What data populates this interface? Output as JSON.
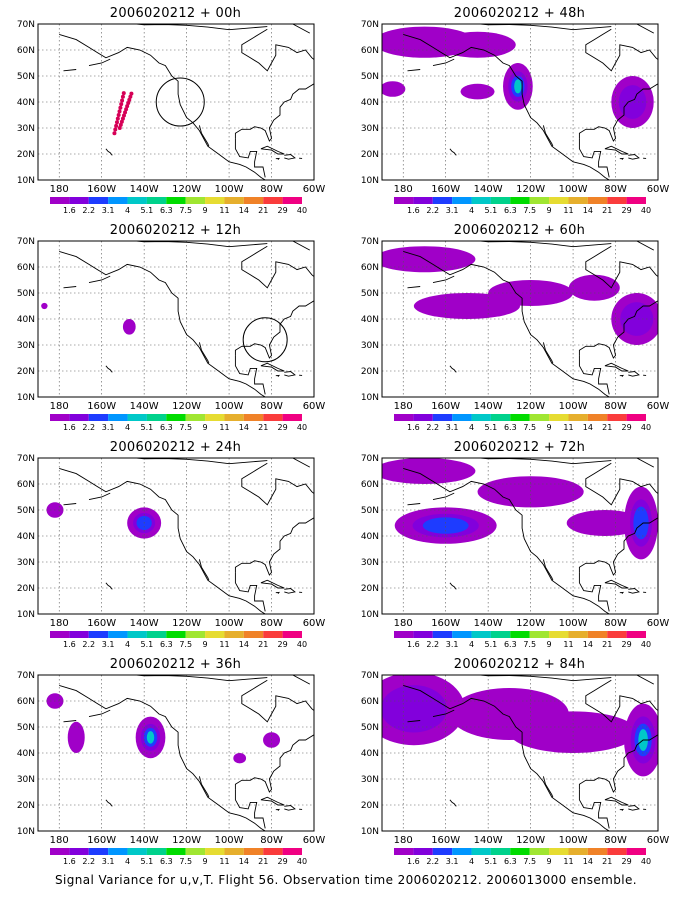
{
  "caption": "Signal Variance for u,v,T. Flight 56. Observation time 2006020212. 2006013000 ensemble.",
  "lat_labels": [
    "70N",
    "60N",
    "50N",
    "40N",
    "30N",
    "20N",
    "10N"
  ],
  "lon_labels": [
    "180",
    "160W",
    "140W",
    "120W",
    "100W",
    "80W",
    "60W"
  ],
  "colorbar": {
    "labels": [
      "1.6",
      "2.2",
      "3.1",
      "4",
      "5.1",
      "6.3",
      "7.5",
      "9",
      "11",
      "14",
      "21",
      "29",
      "40"
    ],
    "colors": [
      "#a000c8",
      "#8200dc",
      "#1e3cff",
      "#0096ff",
      "#00c8c8",
      "#00d28c",
      "#00dc00",
      "#a0e632",
      "#e6dc32",
      "#e6af2d",
      "#f08228",
      "#fa3c3c",
      "#f00082"
    ]
  },
  "panels": [
    {
      "title": "2006020212 + 00h"
    },
    {
      "title": "2006020212 + 48h"
    },
    {
      "title": "2006020212 + 12h"
    },
    {
      "title": "2006020212 + 60h"
    },
    {
      "title": "2006020212 + 24h"
    },
    {
      "title": "2006020212 + 72h"
    },
    {
      "title": "2006020212 + 36h"
    },
    {
      "title": "2006020212 + 84h"
    }
  ]
}
